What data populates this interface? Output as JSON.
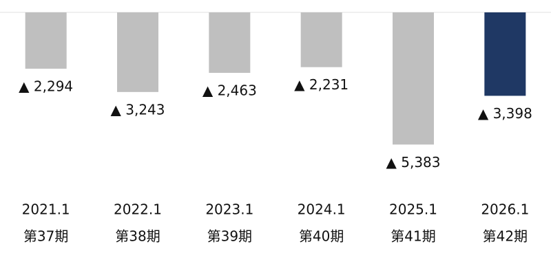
{
  "chart_data": {
    "type": "bar",
    "categories": [
      "2021.1",
      "2022.1",
      "2023.1",
      "2024.1",
      "2025.1",
      "2026.1"
    ],
    "periods": [
      "第37期",
      "第38期",
      "第39期",
      "第40期",
      "第41期",
      "第42期"
    ],
    "values": [
      -2294,
      -3243,
      -2463,
      -2231,
      -5383,
      -3398
    ],
    "value_labels": [
      "▲ 2,294",
      "▲ 3,243",
      "▲ 2,463",
      "▲ 2,231",
      "▲ 5,383",
      "▲ 3,398"
    ],
    "colors": [
      "#bfbfbf",
      "#bfbfbf",
      "#bfbfbf",
      "#bfbfbf",
      "#bfbfbf",
      "#1f3864"
    ],
    "ylim": [
      -7000,
      0
    ]
  }
}
